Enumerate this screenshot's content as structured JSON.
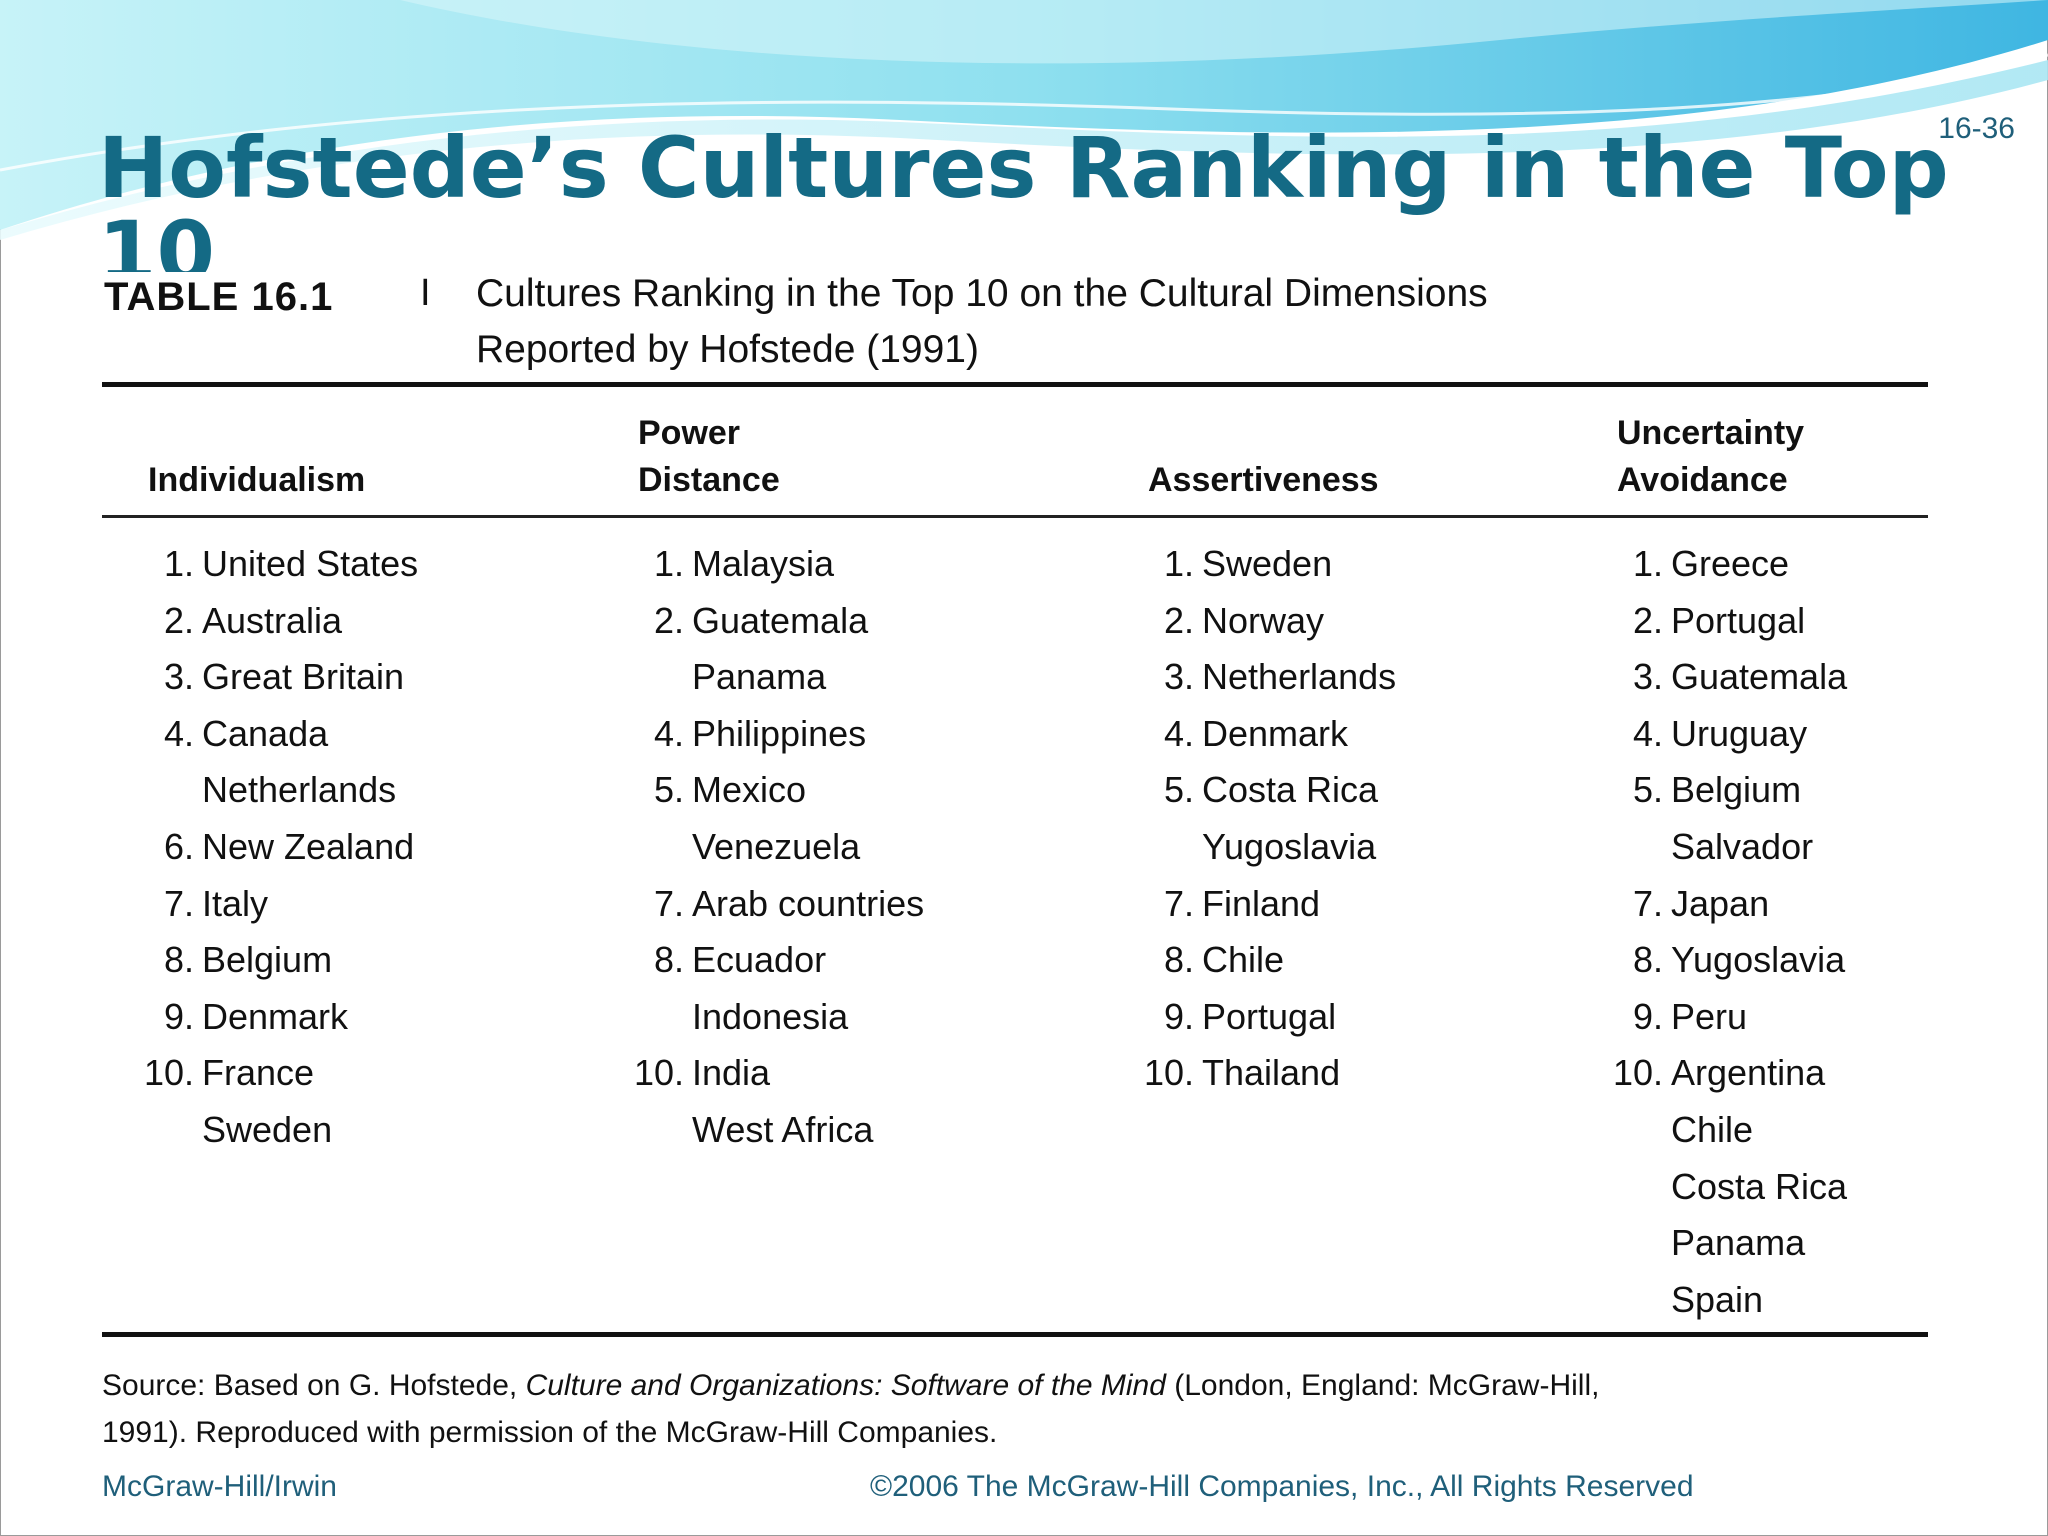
{
  "slide": {
    "number": "16-36",
    "title": "Hofstede’s Cultures Ranking in the Top 10"
  },
  "table": {
    "label": "TABLE 16.1",
    "separator": "I",
    "caption_line1": "Cultures Ranking in the Top 10 on the Cultural Dimensions",
    "caption_line2": "Reported by Hofstede (1991)",
    "columns": [
      {
        "header_line1": "",
        "header_line2": "Individualism",
        "items": [
          {
            "rank": "1.",
            "country": "United States"
          },
          {
            "rank": "2.",
            "country": "Australia"
          },
          {
            "rank": "3.",
            "country": "Great Britain"
          },
          {
            "rank": "4.",
            "country": "Canada"
          },
          {
            "rank": "",
            "country": "Netherlands"
          },
          {
            "rank": "6.",
            "country": "New Zealand"
          },
          {
            "rank": "7.",
            "country": "Italy"
          },
          {
            "rank": "8.",
            "country": "Belgium"
          },
          {
            "rank": "9.",
            "country": "Denmark"
          },
          {
            "rank": "10.",
            "country": "France"
          },
          {
            "rank": "",
            "country": "Sweden"
          }
        ]
      },
      {
        "header_line1": "Power",
        "header_line2": "Distance",
        "items": [
          {
            "rank": "1.",
            "country": "Malaysia"
          },
          {
            "rank": "2.",
            "country": "Guatemala"
          },
          {
            "rank": "",
            "country": "Panama"
          },
          {
            "rank": "4.",
            "country": "Philippines"
          },
          {
            "rank": "5.",
            "country": "Mexico"
          },
          {
            "rank": "",
            "country": "Venezuela"
          },
          {
            "rank": "7.",
            "country": "Arab countries"
          },
          {
            "rank": "8.",
            "country": "Ecuador"
          },
          {
            "rank": "",
            "country": "Indonesia"
          },
          {
            "rank": "10.",
            "country": "India"
          },
          {
            "rank": "",
            "country": "West Africa"
          }
        ]
      },
      {
        "header_line1": "",
        "header_line2": "Assertiveness",
        "items": [
          {
            "rank": "1.",
            "country": "Sweden"
          },
          {
            "rank": "2.",
            "country": "Norway"
          },
          {
            "rank": "3.",
            "country": "Netherlands"
          },
          {
            "rank": "4.",
            "country": "Denmark"
          },
          {
            "rank": "5.",
            "country": "Costa Rica"
          },
          {
            "rank": "",
            "country": "Yugoslavia"
          },
          {
            "rank": "7.",
            "country": "Finland"
          },
          {
            "rank": "8.",
            "country": "Chile"
          },
          {
            "rank": "9.",
            "country": "Portugal"
          },
          {
            "rank": "10.",
            "country": "Thailand"
          }
        ]
      },
      {
        "header_line1": "Uncertainty",
        "header_line2": "Avoidance",
        "items": [
          {
            "rank": "1.",
            "country": "Greece"
          },
          {
            "rank": "2.",
            "country": "Portugal"
          },
          {
            "rank": "3.",
            "country": "Guatemala"
          },
          {
            "rank": "4.",
            "country": "Uruguay"
          },
          {
            "rank": "5.",
            "country": "Belgium"
          },
          {
            "rank": "",
            "country": "Salvador"
          },
          {
            "rank": "7.",
            "country": "Japan"
          },
          {
            "rank": "8.",
            "country": "Yugoslavia"
          },
          {
            "rank": "9.",
            "country": "Peru"
          },
          {
            "rank": "10.",
            "country": "Argentina"
          },
          {
            "rank": "",
            "country": "Chile"
          },
          {
            "rank": "",
            "country": "Costa Rica"
          },
          {
            "rank": "",
            "country": "Panama"
          },
          {
            "rank": "",
            "country": "Spain"
          }
        ]
      }
    ]
  },
  "source": {
    "prefix": "Source: Based on G. Hofstede, ",
    "book": "Culture and Organizations: Software of the Mind",
    "suffix_line1": " (London, England: McGraw-Hill,",
    "line2": "1991). Reproduced with permission of the McGraw-Hill Companies."
  },
  "footer": {
    "left": "McGraw-Hill/Irwin",
    "right": "©2006 The McGraw-Hill Companies, Inc., All Rights Reserved"
  },
  "colors": {
    "title": "#146a85",
    "footer": "#1f5f7a",
    "banner_light": "#9fe3f2",
    "banner_mid": "#4fc3e6"
  }
}
